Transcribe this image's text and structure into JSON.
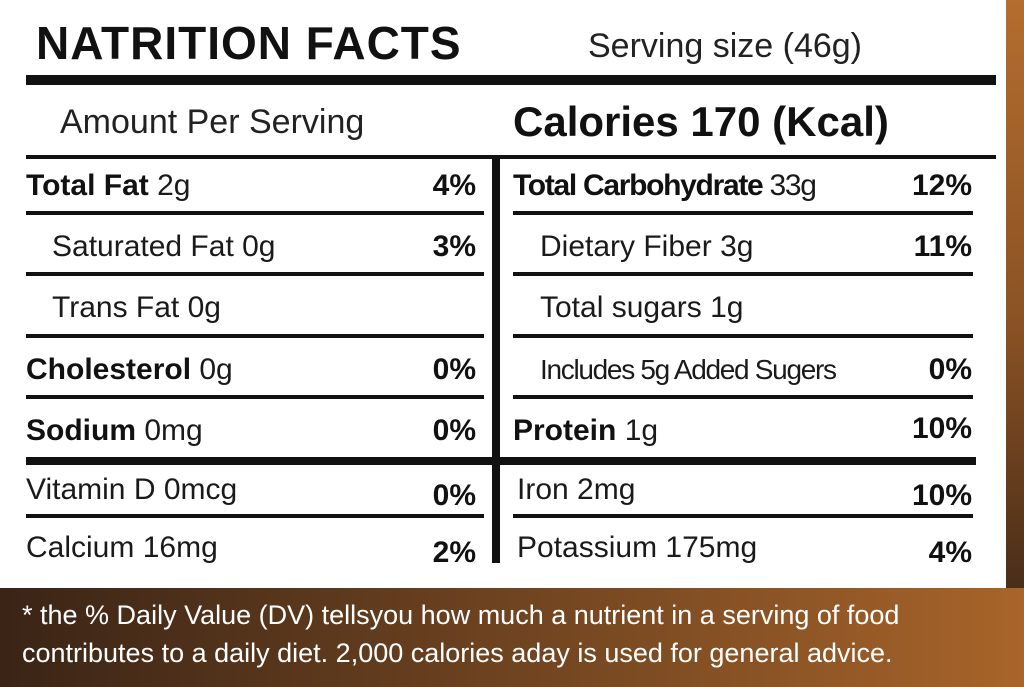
{
  "header": {
    "title": "NATRITION FACTS",
    "serving_size": "Serving size (46g)"
  },
  "summary": {
    "amount_label": "Amount Per Serving",
    "calories": "Calories 170 (Kcal)"
  },
  "left_column": [
    {
      "name": "Total Fat",
      "amount": "2g",
      "dv": "4%"
    },
    {
      "name": "Saturated Fat",
      "amount": "0g",
      "dv": "3%"
    },
    {
      "name": "Trans Fat",
      "amount": "0g",
      "dv": ""
    },
    {
      "name": "Cholesterol",
      "amount": "0g",
      "dv": "0%"
    },
    {
      "name": "Sodium",
      "amount": "0mg",
      "dv": "0%"
    },
    {
      "name": "Vitamin D",
      "amount": "0mcg",
      "dv": "0%"
    },
    {
      "name": "Calcium",
      "amount": "16mg",
      "dv": "2%"
    }
  ],
  "right_column": [
    {
      "name": "Total Carbohydrate",
      "amount": "33g",
      "dv": "12%"
    },
    {
      "name": "Dietary Fiber",
      "amount": "3g",
      "dv": "11%"
    },
    {
      "name": "Total sugars",
      "amount": "1g",
      "dv": ""
    },
    {
      "name": "Includes 5g Added Sugers",
      "amount": "",
      "dv": "0%"
    },
    {
      "name": "Protein",
      "amount": "1g",
      "dv": "10%"
    },
    {
      "name": "Iron",
      "amount": "2mg",
      "dv": "10%"
    },
    {
      "name": "Potassium",
      "amount": "175mg",
      "dv": "4%"
    }
  ],
  "footnote": {
    "line1": "* the % Daily Value (DV) tellsyou how much a nutrient in a serving of food",
    "line2": "contributes to a daily diet. 2,000 calories aday is used for general advice."
  },
  "colors": {
    "background_dark": "#3a2416",
    "background_accent": "#a8642a",
    "panel": "#ffffff",
    "ink": "#111111"
  }
}
